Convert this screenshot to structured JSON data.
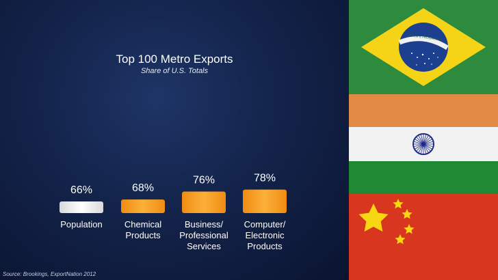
{
  "slide": {
    "title": "Top 100 Metro Exports",
    "subtitle": "Share of U.S. Totals",
    "source": "Source: Brookings, ExportNation 2012"
  },
  "chart_data": {
    "type": "bar",
    "title": "Top 100 Metro Exports",
    "subtitle": "Share of U.S. Totals",
    "categories": [
      "Population",
      "Chemical Products",
      "Business/ Professional Services",
      "Computer/ Electronic Products"
    ],
    "values": [
      66,
      68,
      76,
      78
    ],
    "value_labels": [
      "66%",
      "68%",
      "76%",
      "78%"
    ],
    "category_lines": [
      [
        "Population"
      ],
      [
        "Chemical",
        "Products"
      ],
      [
        "Business/",
        "Professional",
        "Services"
      ],
      [
        "Computer/",
        "Electronic",
        "Products"
      ]
    ],
    "ylim": [
      0,
      100
    ],
    "colors": [
      "#ededed",
      "#f7a21f",
      "#f7a21f",
      "#f7a21f"
    ],
    "grid": false,
    "legend": "none"
  },
  "flags": {
    "brazil": {
      "motto": "ORDEM E PROGRESSO",
      "colors": [
        "#2e8b3e",
        "#f5d418",
        "#1d3f8f"
      ]
    },
    "india": {
      "colors": [
        "#e08a45",
        "#f2f2f2",
        "#1f8a33",
        "#1c2a88"
      ]
    },
    "china": {
      "colors": [
        "#d8361e",
        "#f7d711"
      ]
    }
  }
}
